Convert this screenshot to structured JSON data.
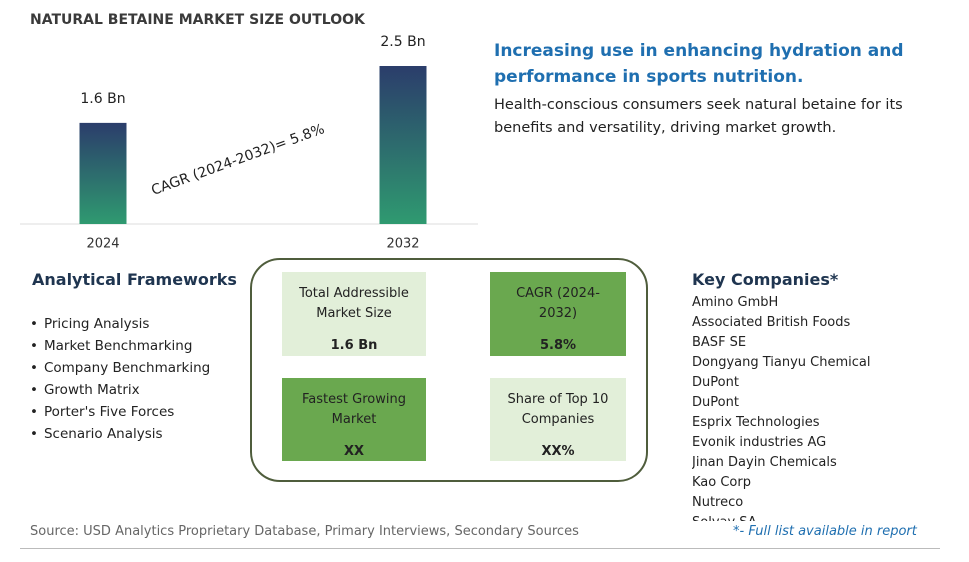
{
  "chart_data": {
    "type": "bar",
    "title": "NATURAL BETAINE MARKET SIZE OUTLOOK",
    "categories": [
      "2024",
      "2032"
    ],
    "values": [
      1.6,
      2.5
    ],
    "value_labels": [
      "1.6 Bn",
      "2.5 Bn"
    ],
    "ylim": [
      0,
      2.5
    ],
    "annotation": "CAGR (2024-2032)=  5.8%"
  },
  "headline": "Increasing use in enhancing hydration and performance in sports nutrition.",
  "description": "Health-conscious consumers seek natural betaine for its benefits and versatility, driving market growth.",
  "frameworks": {
    "title": "Analytical Frameworks",
    "items": [
      "Pricing Analysis",
      "Market Benchmarking",
      "Company Benchmarking",
      "Growth Matrix",
      "Porter's Five Forces",
      "Scenario Analysis"
    ]
  },
  "metrics": [
    {
      "label": "Total Addressible Market Size",
      "value": "1.6 Bn"
    },
    {
      "label": "CAGR (2024-2032)",
      "value": "5.8%"
    },
    {
      "label": "Fastest Growing Market",
      "value": "XX"
    },
    {
      "label": "Share of Top 10 Companies",
      "value": "XX%"
    }
  ],
  "companies": {
    "title": "Key Companies*",
    "items": [
      "Amino GmbH",
      "Associated British Foods",
      "BASF SE",
      "Dongyang Tianyu Chemical",
      "DuPont",
      "DuPont",
      "Esprix Technologies",
      "Evonik industries AG",
      "Jinan Dayin Chemicals",
      "Kao Corp",
      "Nutreco",
      "Solvay SA"
    ]
  },
  "source": "Source: USD Analytics Proprietary Database, Primary Interviews, Secondary Sources",
  "footnote": "*- Full list available in report"
}
